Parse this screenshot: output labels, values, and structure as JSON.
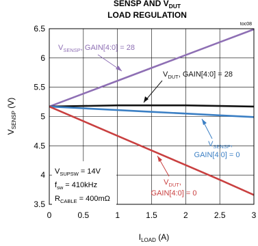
{
  "chart_data": {
    "type": "line",
    "title": {
      "line1_parts": [
        "SENSP AND V",
        "DUT"
      ],
      "line2": "LOAD REGULATION"
    },
    "figure_tag": "toc08",
    "xlabel": {
      "main": "I",
      "sub": "LOAD",
      "unit": " (A)"
    },
    "ylabel": {
      "main": "V",
      "sub": "SENSP",
      "unit": " (V)"
    },
    "xlim": [
      0,
      3
    ],
    "ylim": [
      3.5,
      6.5
    ],
    "x_ticks": [
      0,
      0.5,
      1,
      1.5,
      2,
      2.5,
      3
    ],
    "x_tick_labels": [
      "0",
      "0.5",
      "1",
      "1.5",
      "2",
      "2.5",
      "3"
    ],
    "y_ticks": [
      3.5,
      4,
      4.5,
      5,
      5.5,
      6,
      6.5
    ],
    "y_tick_labels": [
      "3.5",
      "4",
      "4.5",
      "5",
      "5.5",
      "6",
      "6.5"
    ],
    "grid": true,
    "series": [
      {
        "key": "vsensp_28",
        "color": "#8e6fb4",
        "x": [
          0,
          0.5,
          1,
          1.5,
          2,
          2.5,
          3
        ],
        "y": [
          5.17,
          5.39,
          5.61,
          5.83,
          6.05,
          6.27,
          6.49
        ]
      },
      {
        "key": "vdut_28",
        "color": "#111111",
        "x": [
          0,
          0.5,
          1,
          1.5,
          2,
          2.5,
          3
        ],
        "y": [
          5.17,
          5.18,
          5.19,
          5.19,
          5.19,
          5.18,
          5.17
        ]
      },
      {
        "key": "vsensp_0",
        "color": "#3b7fc4",
        "x": [
          0,
          0.5,
          1,
          1.5,
          2,
          2.5,
          3
        ],
        "y": [
          5.17,
          5.14,
          5.11,
          5.08,
          5.05,
          5.02,
          4.99
        ]
      },
      {
        "key": "vdut_0",
        "color": "#c94040",
        "x": [
          0,
          0.5,
          1,
          1.5,
          2,
          2.5,
          3
        ],
        "y": [
          5.17,
          4.92,
          4.67,
          4.42,
          4.17,
          3.92,
          3.66
        ]
      }
    ],
    "annotations": {
      "vsensp_28": {
        "color": "#8e6fb4",
        "parts": [
          "V",
          "SENSP",
          ", GAIN[4:0] = 28"
        ]
      },
      "vdut_28": {
        "color": "#111111",
        "parts": [
          "V",
          "DUT",
          ", GAIN[4:0] = 28"
        ]
      },
      "vsensp_0": {
        "color": "#3b7fc4",
        "line1_parts": [
          "V",
          "SENSP",
          ","
        ],
        "line2": "GAIN[4:0] = 0"
      },
      "vdut_0": {
        "color": "#c94040",
        "line1_parts": [
          "V",
          "DUT",
          ","
        ],
        "line2": "GAIN[4:0] = 0"
      }
    },
    "conditions": [
      {
        "parts": [
          "V",
          "SUPSW",
          " = 14V"
        ]
      },
      {
        "parts": [
          "f",
          "sw",
          " = 410kHz"
        ]
      },
      {
        "parts": [
          "R",
          "CABLE",
          " = 400mΩ"
        ]
      }
    ]
  }
}
